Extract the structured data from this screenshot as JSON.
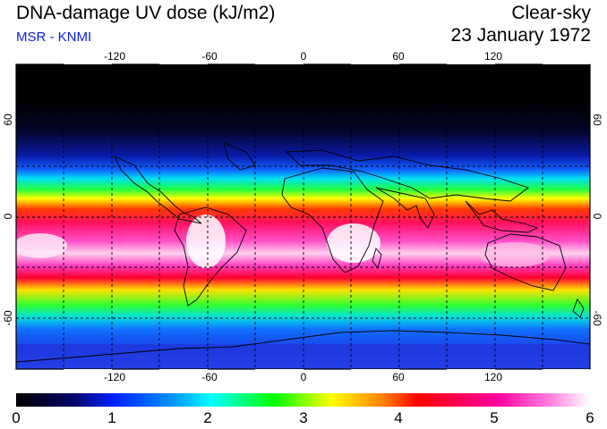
{
  "header": {
    "title": "DNA-damage UV dose (kJ/m2)",
    "source": "MSR - KNMI",
    "condition": "Clear-sky",
    "date": "23 January 1972"
  },
  "map": {
    "lon_ticks": [
      "-120",
      "-60",
      "0",
      "60",
      "120"
    ],
    "lat_ticks_left": [
      "60",
      "0",
      "-60"
    ],
    "lat_ticks_right": [
      "60",
      "0",
      "-60"
    ],
    "colors": {
      "frame": "#000000",
      "grid": "#000000"
    }
  },
  "colorbar": {
    "labels": [
      "0",
      "1",
      "2",
      "3",
      "4",
      "5",
      "6"
    ],
    "stops": [
      "#000000",
      "#0000cc",
      "#0080ff",
      "#00ffff",
      "#00ff00",
      "#ffff00",
      "#ff0000",
      "#ff00aa",
      "#ffffff"
    ]
  }
}
